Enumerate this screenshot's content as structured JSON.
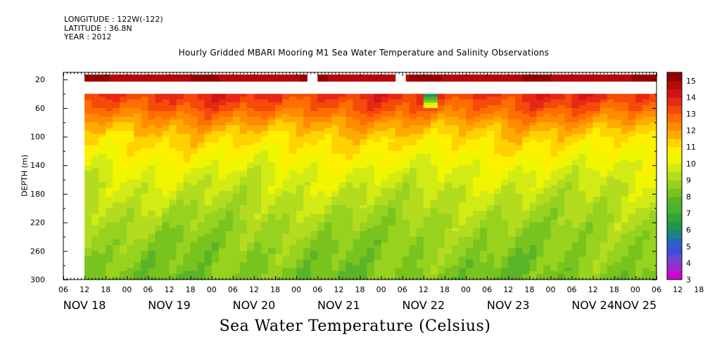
{
  "header": {
    "longitude": "LONGITUDE : 122W(-122)",
    "latitude": "LATITUDE : 36.8N",
    "year": "YEAR : 2012"
  },
  "footer": {
    "label": "Sea Water Temperature (Celsius)"
  },
  "chart_data": {
    "type": "heatmap",
    "title": "Hourly Gridded MBARI Mooring M1 Sea Water Temperature and Salinity Observations",
    "xlabel": "",
    "ylabel": "DEPTH (m)",
    "ylim": [
      300,
      10
    ],
    "y_inverted": true,
    "y_ticks": [
      20,
      60,
      100,
      140,
      180,
      220,
      260,
      300
    ],
    "x_hour_ticks": [
      "06",
      "12",
      "18",
      "00",
      "06",
      "12",
      "18",
      "00",
      "06",
      "12",
      "18",
      "00",
      "06",
      "12",
      "18",
      "00",
      "06",
      "12",
      "18",
      "00",
      "06",
      "12",
      "18",
      "00",
      "06",
      "12",
      "18",
      "00",
      "06",
      "12",
      "18",
      "00",
      "06"
    ],
    "x_day_labels": [
      "NOV 18",
      "NOV 19",
      "NOV 20",
      "NOV 21",
      "NOV 22",
      "NOV 23",
      "NOV 24",
      "NOV 25"
    ],
    "x_range": [
      "NOV 18 06:00",
      "NOV 25 06:00"
    ],
    "data_start": "NOV 18 12:00",
    "surface_gaps": [
      [
        "NOV 21 03:00",
        "NOV 21 06:00"
      ],
      [
        "NOV 22 04:00",
        "NOV 22 07:00"
      ]
    ],
    "colorbar": {
      "ticks": [
        3,
        4,
        5,
        6,
        7,
        8,
        9,
        10,
        11,
        12,
        13,
        14,
        15
      ],
      "colors": [
        "#d200d2",
        "#a028d2",
        "#6e46d2",
        "#3c50dc",
        "#2864c8",
        "#1e8282",
        "#1e9650",
        "#32a532",
        "#46b432",
        "#5ab428",
        "#78c31e",
        "#96d21e",
        "#b4dc1e",
        "#d2eb14",
        "#f0f500",
        "#fff000",
        "#ffd200",
        "#ffaa00",
        "#ff8c00",
        "#ff6e00",
        "#f54a0a",
        "#e62814",
        "#d21414",
        "#b40a0a",
        "#960000"
      ],
      "range": [
        3,
        15.5
      ]
    },
    "profile": {
      "depth_m": [
        10,
        40,
        60,
        80,
        100,
        120,
        140,
        160,
        180,
        200,
        220,
        240,
        260,
        280,
        300
      ],
      "temperature_c": [
        14.8,
        13.7,
        13.0,
        12.0,
        11.2,
        10.7,
        10.2,
        9.8,
        9.5,
        9.2,
        8.9,
        8.7,
        8.5,
        8.4,
        8.2
      ]
    },
    "anomaly": {
      "time": "NOV 22 13:00",
      "depth_m": 43,
      "temperature_c": 6.0
    },
    "legend_placement": "right"
  }
}
